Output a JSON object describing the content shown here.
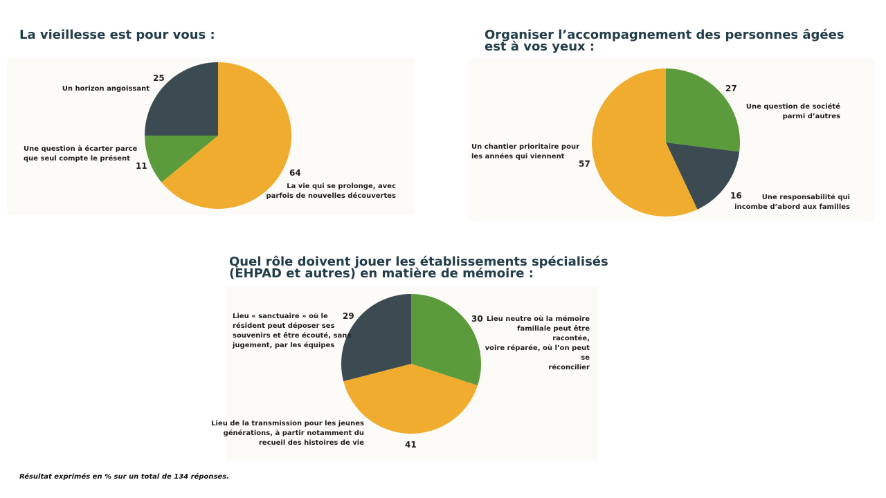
{
  "colors": {
    "orange": "#EFAC2E",
    "green": "#5B9B3C",
    "slate": "#3C4A52",
    "title": "#233D4A"
  },
  "footnote": "Résultat exprimés en % sur un total de 134 réponses.",
  "chart_data": [
    {
      "type": "pie",
      "title": "La vieillesse est pour vous :",
      "slices": [
        {
          "label": "La vie qui se prolonge, avec\nparfois de nouvelles découvertes",
          "value": 64,
          "color": "orange"
        },
        {
          "label": "Une question à écarter parce\nque seul compte le présent",
          "value": 11,
          "color": "green"
        },
        {
          "label": "Un horizon angoissant",
          "value": 25,
          "color": "slate"
        }
      ]
    },
    {
      "type": "pie",
      "title": "Organiser l’accompagnement des personnes âgées\nest à vos yeux :",
      "slices": [
        {
          "label": "Une question de société\nparmi d’autres",
          "value": 27,
          "color": "green"
        },
        {
          "label": "Une responsabilité qui\nincombe d’abord aux familles",
          "value": 16,
          "color": "slate"
        },
        {
          "label": "Un chantier prioritaire pour\nles années qui viennent",
          "value": 57,
          "color": "orange"
        }
      ]
    },
    {
      "type": "pie",
      "title": "Quel rôle doivent jouer les établissements spécialisés\n(EHPAD et autres) en matière de mémoire :",
      "slices": [
        {
          "label": "Lieu neutre où la mémoire\nfamiliale peut être racontée,\nvoire réparée, où l’on peut se\nréconcilier",
          "value": 30,
          "color": "green"
        },
        {
          "label": "Lieu de la transmission pour les jeunes\ngénérations, à partir notamment du\nrecueil des histoires de vie",
          "value": 41,
          "color": "orange"
        },
        {
          "label": "Lieu « sanctuaire » où le\nrésident peut déposer ses\nsouvenirs et être écouté, sans\njugement, par les équipes",
          "value": 29,
          "color": "slate"
        }
      ]
    }
  ]
}
